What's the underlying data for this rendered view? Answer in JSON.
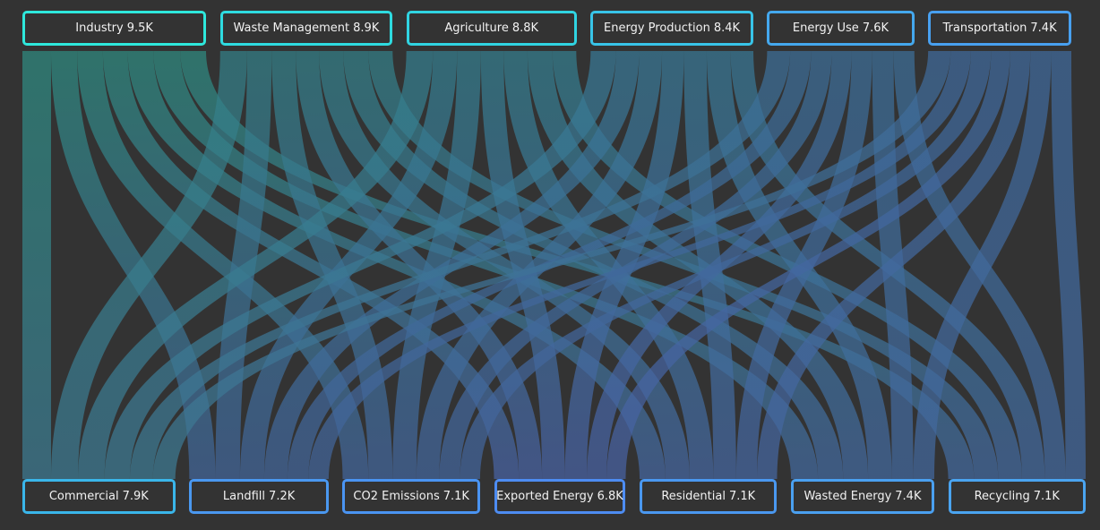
{
  "chart_data": {
    "type": "sankey",
    "title": "",
    "sources": [
      {
        "name": "Industry",
        "value": 9.5,
        "value_label": "9.5K",
        "color": "#2ee8dc",
        "link_color": "#2e8b80"
      },
      {
        "name": "Waste Management",
        "value": 8.9,
        "value_label": "8.9K",
        "color": "#2edbe0",
        "link_color": "#338088"
      },
      {
        "name": "Agriculture",
        "value": 8.8,
        "value_label": "8.8K",
        "color": "#30d4e2",
        "link_color": "#347e8e"
      },
      {
        "name": "Energy Production",
        "value": 8.4,
        "value_label": "8.4K",
        "color": "#38c4e8",
        "link_color": "#387895"
      },
      {
        "name": "Energy Use",
        "value": 7.6,
        "value_label": "7.6K",
        "color": "#44a8ee",
        "link_color": "#3c6e98"
      },
      {
        "name": "Transportation",
        "value": 7.4,
        "value_label": "7.4K",
        "color": "#48a0f0",
        "link_color": "#3f6a9c"
      }
    ],
    "targets": [
      {
        "name": "Commercial",
        "value": 7.9,
        "value_label": "7.9K",
        "color": "#3ab6ea",
        "link_color": "#3d7a92"
      },
      {
        "name": "Landfill",
        "value": 7.2,
        "value_label": "7.2K",
        "color": "#4a98f0",
        "link_color": "#42659a"
      },
      {
        "name": "CO2 Emissions",
        "value": 7.1,
        "value_label": "7.1K",
        "color": "#4a94f2",
        "link_color": "#43659c"
      },
      {
        "name": "Exported Energy",
        "value": 6.8,
        "value_label": "6.8K",
        "color": "#4d8cf2",
        "link_color": "#4862a4"
      },
      {
        "name": "Residential",
        "value": 7.1,
        "value_label": "7.1K",
        "color": "#4a98f0",
        "link_color": "#4566a0"
      },
      {
        "name": "Wasted Energy",
        "value": 7.4,
        "value_label": "7.4K",
        "color": "#4aa0f0",
        "link_color": "#43689e"
      },
      {
        "name": "Recycling",
        "value": 7.1,
        "value_label": "7.1K",
        "color": "#4aa4f0",
        "link_color": "#43689e"
      }
    ],
    "links_matrix_k": [
      [
        1.48,
        1.35,
        1.33,
        1.28,
        1.33,
        1.39,
        1.33
      ],
      [
        1.39,
        1.27,
        1.25,
        1.2,
        1.25,
        1.3,
        1.25
      ],
      [
        1.37,
        1.25,
        1.23,
        1.18,
        1.23,
        1.29,
        1.23
      ],
      [
        1.31,
        1.2,
        1.18,
        1.13,
        1.18,
        1.23,
        1.18
      ],
      [
        1.19,
        1.08,
        1.07,
        1.02,
        1.07,
        1.11,
        1.07
      ],
      [
        1.16,
        1.05,
        1.04,
        0.99,
        1.04,
        1.08,
        1.04
      ]
    ],
    "background": "#333333"
  }
}
